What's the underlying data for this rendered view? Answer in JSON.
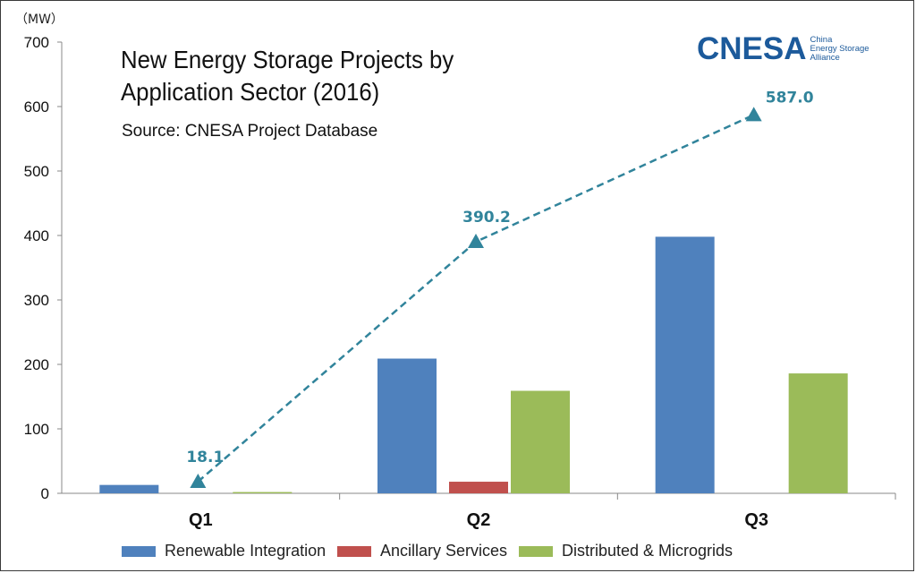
{
  "title_lines": [
    "New Energy Storage Projects by",
    "Application Sector (2016)"
  ],
  "source": "Source: CNESA Project Database",
  "logo": {
    "name": "CNESA",
    "sub_lines": [
      "China",
      "Energy Storage",
      "Alliance"
    ]
  },
  "colors": {
    "renewable": "#4f81bd",
    "ancillary": "#c0504d",
    "distributed": "#9bbb59",
    "total_line": "#31849b"
  },
  "chart_data": {
    "type": "bar",
    "unit_label": "（MW）",
    "categories": [
      "Q1",
      "Q2",
      "Q3"
    ],
    "ylim": [
      0,
      700
    ],
    "yticks": [
      0,
      100,
      200,
      300,
      400,
      500,
      600,
      700
    ],
    "series": [
      {
        "name": "Renewable Integration",
        "key": "renewable",
        "values": [
          13,
          209,
          398
        ]
      },
      {
        "name": "Ancillary Services",
        "key": "ancillary",
        "values": [
          0,
          18,
          0
        ]
      },
      {
        "name": "Distributed & Microgrids",
        "key": "distributed",
        "values": [
          2,
          159,
          186
        ]
      }
    ],
    "line": {
      "values": [
        18.1,
        390.2,
        587.0
      ],
      "labels": [
        "18.1",
        "390.2",
        "587.0"
      ],
      "style": "dashed",
      "marker": "triangle"
    },
    "legend_position": "bottom"
  }
}
